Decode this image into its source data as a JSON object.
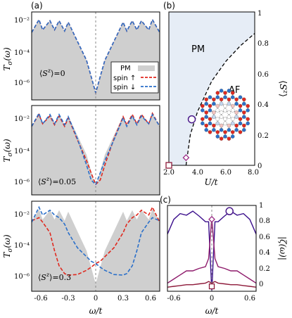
{
  "panel_labels": {
    "a": "(a)",
    "b": "(b)",
    "c": "(c)"
  },
  "colors": {
    "pm_fill": "#cfcfcf",
    "spin_up": "#e0281e",
    "spin_down": "#2a6fc9",
    "region_pm": "#e6edf6",
    "curve_purple": "#3b0f8c",
    "curve_magenta": "#8e1a6b",
    "marker_circle": "#4a1a8a",
    "marker_diamond": "#9b2d86",
    "marker_square": "#8e1a3a"
  },
  "chart_data": [
    {
      "id": "a1",
      "type": "line",
      "ylabel": "T_σ(ω)",
      "yscale": "log",
      "yticks": [
        "10⁻²",
        "10⁻⁴",
        "10⁻⁶"
      ],
      "ylim": [
        1e-07,
        0.1
      ],
      "xlim": [
        -0.7,
        0.7
      ],
      "annotation": "⟨S^z⟩=0",
      "legend": {
        "entries": [
          "PM",
          "spin ↑",
          "spin ↓"
        ],
        "position": "right"
      },
      "x": [
        -0.7,
        -0.62,
        -0.58,
        -0.5,
        -0.45,
        -0.4,
        -0.34,
        -0.3,
        -0.2,
        -0.1,
        -0.05,
        0.0,
        0.05,
        0.1,
        0.2,
        0.3,
        0.34,
        0.4,
        0.45,
        0.5,
        0.58,
        0.62,
        0.7
      ],
      "series": [
        {
          "name": "PM",
          "values": [
            0.004,
            0.03,
            0.006,
            0.025,
            0.006,
            0.025,
            0.005,
            0.02,
            0.001,
            5e-05,
            4e-06,
            3e-07,
            4e-06,
            5e-05,
            0.001,
            0.02,
            0.005,
            0.025,
            0.006,
            0.025,
            0.006,
            0.03,
            0.004
          ]
        },
        {
          "name": "spin ↑",
          "values": [
            0.004,
            0.03,
            0.006,
            0.025,
            0.006,
            0.025,
            0.005,
            0.02,
            0.001,
            5e-05,
            4e-06,
            3e-07,
            4e-06,
            5e-05,
            0.001,
            0.02,
            0.005,
            0.025,
            0.006,
            0.025,
            0.006,
            0.03,
            0.004
          ]
        },
        {
          "name": "spin ↓",
          "values": [
            0.004,
            0.03,
            0.006,
            0.025,
            0.006,
            0.025,
            0.005,
            0.02,
            0.001,
            5e-05,
            4e-06,
            3e-07,
            4e-06,
            5e-05,
            0.001,
            0.02,
            0.005,
            0.025,
            0.006,
            0.025,
            0.006,
            0.03,
            0.004
          ]
        }
      ]
    },
    {
      "id": "a2",
      "type": "line",
      "ylabel": "T_σ(ω)",
      "yscale": "log",
      "yticks": [
        "10⁻²",
        "10⁻⁴",
        "10⁻⁶"
      ],
      "ylim": [
        1e-07,
        0.1
      ],
      "xlim": [
        -0.7,
        0.7
      ],
      "annotation": "⟨S^z⟩=0.05",
      "x": [
        -0.7,
        -0.62,
        -0.58,
        -0.5,
        -0.45,
        -0.4,
        -0.34,
        -0.3,
        -0.2,
        -0.1,
        -0.05,
        0.0,
        0.05,
        0.1,
        0.2,
        0.3,
        0.34,
        0.4,
        0.45,
        0.5,
        0.58,
        0.62,
        0.7
      ],
      "series": [
        {
          "name": "PM",
          "values": [
            0.004,
            0.03,
            0.006,
            0.025,
            0.006,
            0.025,
            0.005,
            0.02,
            0.001,
            5e-05,
            4e-06,
            3e-07,
            4e-06,
            5e-05,
            0.001,
            0.02,
            0.005,
            0.025,
            0.006,
            0.025,
            0.006,
            0.03,
            0.004
          ]
        },
        {
          "name": "spin ↑",
          "values": [
            0.004,
            0.025,
            0.006,
            0.02,
            0.005,
            0.02,
            0.004,
            0.015,
            0.0005,
            2e-05,
            3e-06,
            5e-07,
            1e-06,
            1e-05,
            0.0006,
            0.018,
            0.005,
            0.025,
            0.006,
            0.025,
            0.006,
            0.03,
            0.004
          ]
        },
        {
          "name": "spin ↓",
          "values": [
            0.004,
            0.03,
            0.006,
            0.025,
            0.006,
            0.025,
            0.005,
            0.018,
            0.0006,
            1e-05,
            1e-06,
            5e-07,
            3e-06,
            2e-05,
            0.0005,
            0.015,
            0.004,
            0.02,
            0.005,
            0.02,
            0.006,
            0.025,
            0.004
          ]
        }
      ]
    },
    {
      "id": "a3",
      "type": "line",
      "ylabel": "T_σ(ω)",
      "xlabel": "ω/t",
      "yscale": "log",
      "yticks": [
        "10⁻²",
        "10⁻⁴",
        "10⁻⁶"
      ],
      "xticks": [
        "-0.6",
        "-0.3",
        "0",
        "0.3",
        "0.6"
      ],
      "ylim": [
        1e-07,
        0.1
      ],
      "xlim": [
        -0.7,
        0.7
      ],
      "annotation": "⟨S^z⟩=0.3",
      "x": [
        -0.7,
        -0.62,
        -0.58,
        -0.5,
        -0.45,
        -0.4,
        -0.34,
        -0.3,
        -0.2,
        -0.1,
        -0.05,
        0.0,
        0.05,
        0.1,
        0.2,
        0.3,
        0.34,
        0.4,
        0.45,
        0.5,
        0.58,
        0.62,
        0.7
      ],
      "series": [
        {
          "name": "PM",
          "values": [
            0.004,
            0.03,
            0.006,
            0.025,
            0.006,
            0.025,
            0.005,
            0.02,
            0.001,
            5e-05,
            4e-06,
            3e-07,
            4e-06,
            5e-05,
            0.001,
            0.02,
            0.005,
            0.025,
            0.006,
            0.025,
            0.006,
            0.03,
            0.004
          ]
        },
        {
          "name": "spin ↑",
          "values": [
            0.005,
            0.008,
            0.004,
            0.0008,
            5e-05,
            5e-06,
            1.5e-06,
            1.2e-06,
            1.3e-06,
            2.5e-06,
            4e-06,
            7e-06,
            1e-05,
            2e-05,
            8e-05,
            0.0008,
            0.003,
            0.008,
            0.012,
            0.025,
            0.012,
            0.04,
            0.004
          ]
        },
        {
          "name": "spin ↓",
          "values": [
            0.004,
            0.04,
            0.012,
            0.025,
            0.012,
            0.008,
            0.003,
            0.0008,
            8e-05,
            2e-05,
            1e-05,
            7e-06,
            4e-06,
            2.5e-06,
            1.3e-06,
            1.2e-06,
            1.5e-06,
            5e-06,
            5e-05,
            0.0008,
            0.004,
            0.008,
            0.005
          ]
        }
      ]
    },
    {
      "id": "b",
      "type": "line",
      "xlabel": "U/t",
      "ylabel": "⟨S^z⟩",
      "xticks": [
        "2.0",
        "4.0",
        "6.0",
        "8.0"
      ],
      "yticks": [
        "0",
        "0.2",
        "0.4",
        "0.6",
        "0.8",
        "1"
      ],
      "xlim": [
        2.0,
        8.0
      ],
      "ylim": [
        0,
        1
      ],
      "regions": [
        "PM",
        "AF"
      ],
      "boundary": {
        "x": [
          3.2,
          3.5,
          4.0,
          5.0,
          6.0,
          7.0,
          8.0
        ],
        "y": [
          0.0,
          0.2,
          0.35,
          0.55,
          0.68,
          0.78,
          0.86
        ]
      },
      "markers": [
        {
          "shape": "circle",
          "x": 3.6,
          "y": 0.3
        },
        {
          "shape": "diamond",
          "x": 3.2,
          "y": 0.05
        },
        {
          "shape": "square",
          "x": 2.0,
          "y": 0.0
        }
      ]
    },
    {
      "id": "c",
      "type": "line",
      "xlabel": "ω/t",
      "ylabel": "|ζ(ω)|",
      "xticks": [
        "-0.6",
        "0",
        "0.6"
      ],
      "yticks": [
        "0",
        "0.2",
        "0.4",
        "0.6",
        "0.8",
        "1"
      ],
      "xlim": [
        -0.7,
        0.7
      ],
      "ylim": [
        0,
        1.05
      ],
      "x": [
        -0.7,
        -0.6,
        -0.5,
        -0.4,
        -0.3,
        -0.2,
        -0.1,
        -0.05,
        0.0,
        0.05,
        0.1,
        0.2,
        0.3,
        0.4,
        0.5,
        0.6,
        0.7
      ],
      "series": [
        {
          "values": [
            0.7,
            0.88,
            0.95,
            0.93,
            0.98,
            0.92,
            0.85,
            0.85,
            0.0,
            0.85,
            0.85,
            0.92,
            0.98,
            0.93,
            0.95,
            0.88,
            0.7
          ]
        },
        {
          "values": [
            0.1,
            0.15,
            0.2,
            0.25,
            0.25,
            0.28,
            0.3,
            0.4,
            0.9,
            0.4,
            0.3,
            0.28,
            0.25,
            0.25,
            0.2,
            0.15,
            0.1
          ]
        },
        {
          "values": [
            0.05,
            0.06,
            0.07,
            0.08,
            0.08,
            0.09,
            0.1,
            0.12,
            0.1,
            0.12,
            0.1,
            0.09,
            0.08,
            0.08,
            0.07,
            0.06,
            0.05
          ]
        }
      ],
      "markers": [
        {
          "shape": "circle",
          "x": 0.28,
          "y": 0.98
        },
        {
          "shape": "diamond",
          "x": 0.0,
          "y": 0.88
        },
        {
          "shape": "square",
          "x": 0.0,
          "y": 0.06
        }
      ]
    }
  ]
}
